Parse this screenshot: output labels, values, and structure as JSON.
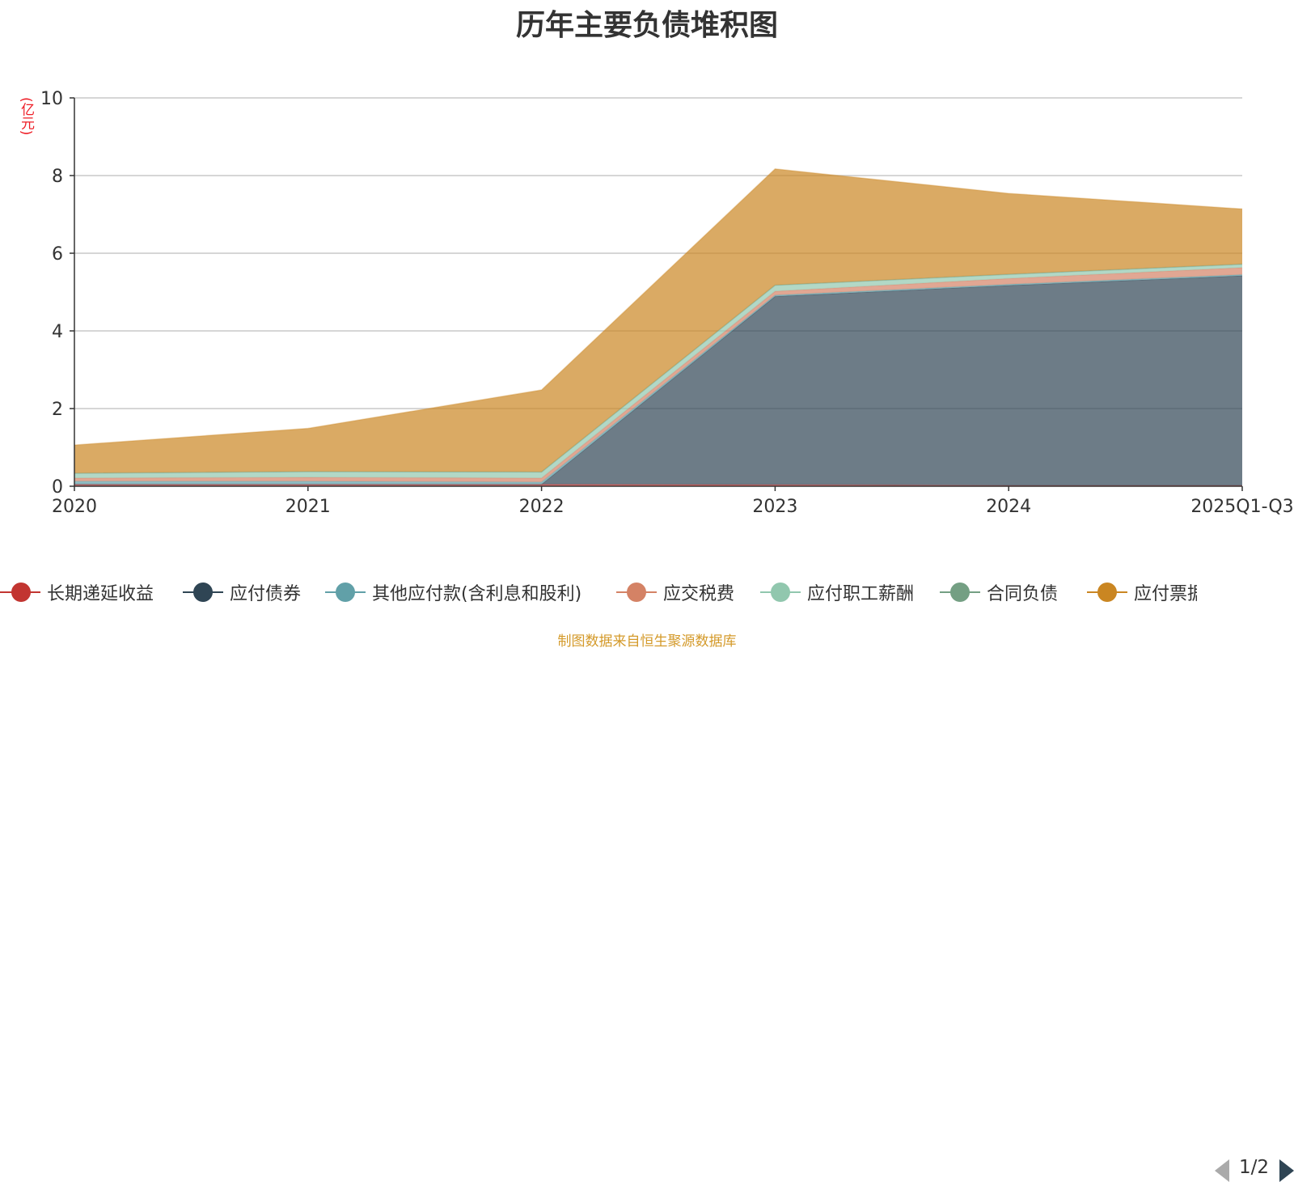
{
  "chart_data": {
    "type": "area",
    "stacked": true,
    "title": "历年主要负债堆积图",
    "unit_label": "(亿元)",
    "categories": [
      "2020",
      "2021",
      "2022",
      "2023",
      "2024",
      "2025Q1-Q3"
    ],
    "ylim": [
      0,
      10
    ],
    "yticks": [
      0,
      2,
      4,
      6,
      8,
      10
    ],
    "grid": true,
    "series": [
      {
        "name": "长期递延收益",
        "color": "#c23531",
        "values": [
          0.05,
          0.05,
          0.05,
          0.04,
          0.02,
          0.02
        ]
      },
      {
        "name": "应付债券",
        "color": "#2f4554",
        "values": [
          0,
          0,
          0,
          4.85,
          5.15,
          5.4
        ]
      },
      {
        "name": "其他应付款(含利息和股利)",
        "color": "#61a0a8",
        "values": [
          0.08,
          0.08,
          0.06,
          0.03,
          0.03,
          0.03
        ]
      },
      {
        "name": "应交税费",
        "color": "#d48265",
        "values": [
          0.08,
          0.1,
          0.1,
          0.1,
          0.15,
          0.18
        ]
      },
      {
        "name": "应付职工薪酬",
        "color": "#91c7ae",
        "values": [
          0.12,
          0.14,
          0.15,
          0.15,
          0.1,
          0.08
        ]
      },
      {
        "name": "合同负债",
        "color": "#749f83",
        "values": [
          0.01,
          0.01,
          0.01,
          0.01,
          0.01,
          0.01
        ]
      },
      {
        "name": "应付票据",
        "color": "#ca8622",
        "values": [
          0.72,
          1.11,
          2.11,
          2.99,
          2.08,
          1.42
        ]
      }
    ]
  },
  "legend": {
    "pager": "1/2",
    "prev_icon": "triangle-left-icon",
    "next_icon": "triangle-right-icon"
  },
  "source_note": "制图数据来自恒生聚源数据库"
}
